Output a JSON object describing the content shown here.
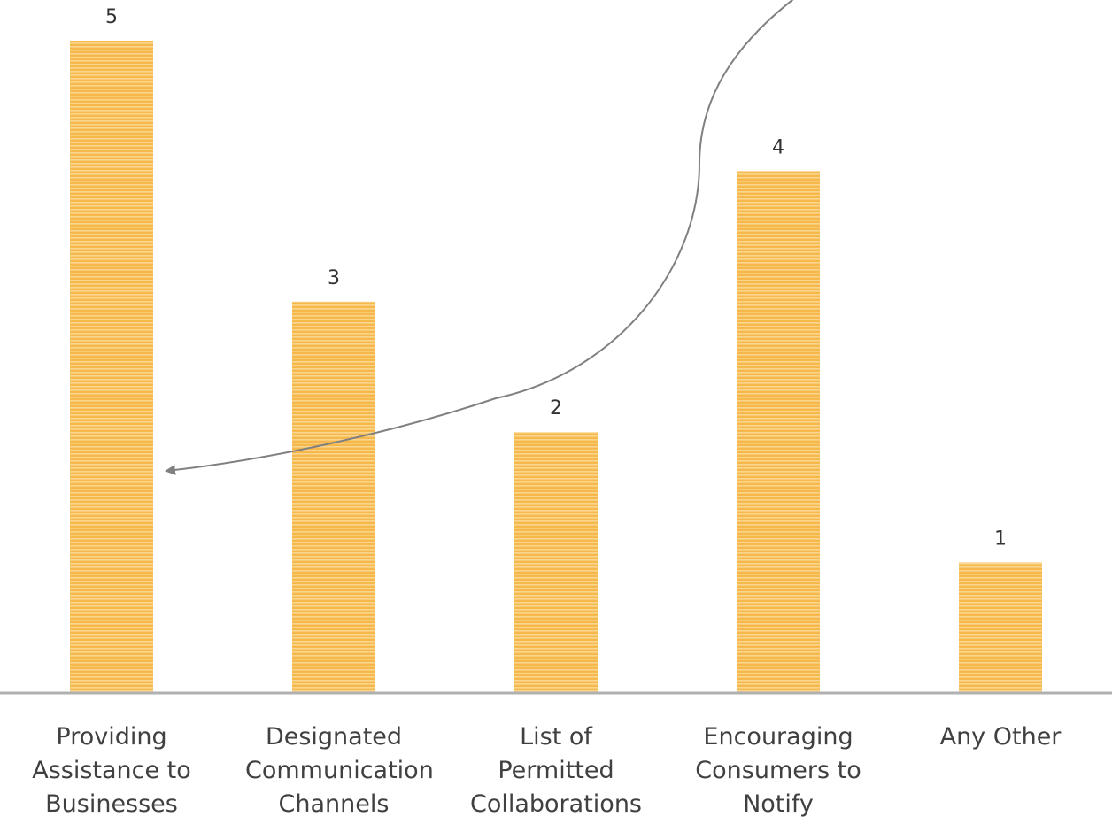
{
  "chart_data": {
    "type": "bar",
    "categories": [
      "Providing Assistance to Businesses",
      "Designated Communication Channels",
      "List of Permitted Collaborations",
      "Encouraging Consumers to Notify",
      "Any Other"
    ],
    "values": [
      5,
      3,
      2,
      4,
      1
    ],
    "data_labels": [
      "5",
      "3",
      "2",
      "4",
      "1"
    ],
    "ylim": [
      0,
      5
    ],
    "grid": false,
    "legend": "none",
    "annotation": "curved arrow pointing to the first bar"
  },
  "colors": {
    "bar": "#f6b84a",
    "bar_stripe": "#f9d58e",
    "axis": "#b0b0b0",
    "arrow": "#808080",
    "text": "#404040"
  }
}
